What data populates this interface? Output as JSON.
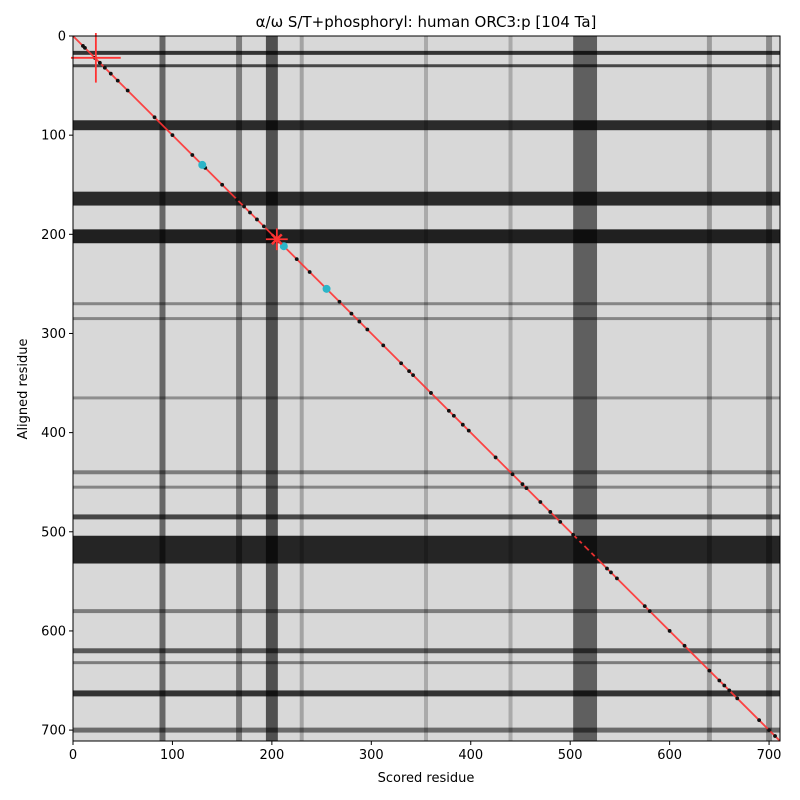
{
  "chart_data": {
    "type": "heatmap",
    "title": "α/ω S/T+phosphoryl: human ORC3:p [104 Ta]",
    "xlabel": "Scored residue",
    "ylabel": "Aligned residue",
    "xlim": [
      0,
      711
    ],
    "ylim": [
      711,
      0
    ],
    "xticks": [
      0,
      100,
      200,
      300,
      400,
      500,
      600,
      700
    ],
    "yticks": [
      0,
      100,
      200,
      300,
      400,
      500,
      600,
      700
    ],
    "colormap": "grayscale",
    "diagonal_line": {
      "from": [
        0,
        0
      ],
      "to": [
        711,
        711
      ],
      "color": "#ff3333"
    },
    "dark_row_bands": [
      {
        "center": 17,
        "width": 4,
        "strength": 0.9
      },
      {
        "center": 30,
        "width": 3,
        "strength": 0.8
      },
      {
        "center": 90,
        "width": 10,
        "strength": 0.95
      },
      {
        "center": 164,
        "width": 14,
        "strength": 0.95
      },
      {
        "center": 202,
        "width": 14,
        "strength": 1.0
      },
      {
        "center": 270,
        "width": 3,
        "strength": 0.45
      },
      {
        "center": 285,
        "width": 3,
        "strength": 0.45
      },
      {
        "center": 365,
        "width": 3,
        "strength": 0.4
      },
      {
        "center": 440,
        "width": 4,
        "strength": 0.5
      },
      {
        "center": 455,
        "width": 3,
        "strength": 0.45
      },
      {
        "center": 485,
        "width": 5,
        "strength": 0.8
      },
      {
        "center": 518,
        "width": 28,
        "strength": 0.98
      },
      {
        "center": 580,
        "width": 4,
        "strength": 0.5
      },
      {
        "center": 620,
        "width": 5,
        "strength": 0.7
      },
      {
        "center": 632,
        "width": 3,
        "strength": 0.5
      },
      {
        "center": 663,
        "width": 6,
        "strength": 0.9
      },
      {
        "center": 700,
        "width": 5,
        "strength": 0.6
      }
    ],
    "dark_col_bands": [
      {
        "center": 90,
        "width": 6,
        "strength": 0.75
      },
      {
        "center": 167,
        "width": 6,
        "strength": 0.6
      },
      {
        "center": 200,
        "width": 12,
        "strength": 0.9
      },
      {
        "center": 230,
        "width": 4,
        "strength": 0.35
      },
      {
        "center": 355,
        "width": 4,
        "strength": 0.3
      },
      {
        "center": 440,
        "width": 4,
        "strength": 0.3
      },
      {
        "center": 515,
        "width": 24,
        "strength": 0.8
      },
      {
        "center": 640,
        "width": 5,
        "strength": 0.4
      },
      {
        "center": 700,
        "width": 6,
        "strength": 0.5
      }
    ],
    "diagonal_points": [
      10,
      12,
      22,
      27,
      32,
      38,
      45,
      55,
      82,
      100,
      120,
      133,
      150,
      165,
      172,
      178,
      185,
      192,
      205,
      225,
      238,
      268,
      280,
      288,
      296,
      312,
      330,
      338,
      342,
      360,
      378,
      383,
      392,
      398,
      425,
      442,
      452,
      456,
      470,
      480,
      490,
      503,
      508,
      513,
      520,
      526,
      537,
      541,
      547,
      575,
      580,
      600,
      615,
      640,
      650,
      655,
      660,
      668,
      690,
      700,
      706
    ],
    "cyan_points": [
      [
        130,
        130
      ],
      [
        212,
        212
      ],
      [
        255,
        255
      ]
    ],
    "cyan_color": "#2cb5c8",
    "markers": [
      {
        "x": 23,
        "y": 22,
        "size": 50,
        "color": "#ff3333"
      },
      {
        "x": 205,
        "y": 205,
        "size": 22,
        "color": "#ff3333"
      }
    ]
  }
}
